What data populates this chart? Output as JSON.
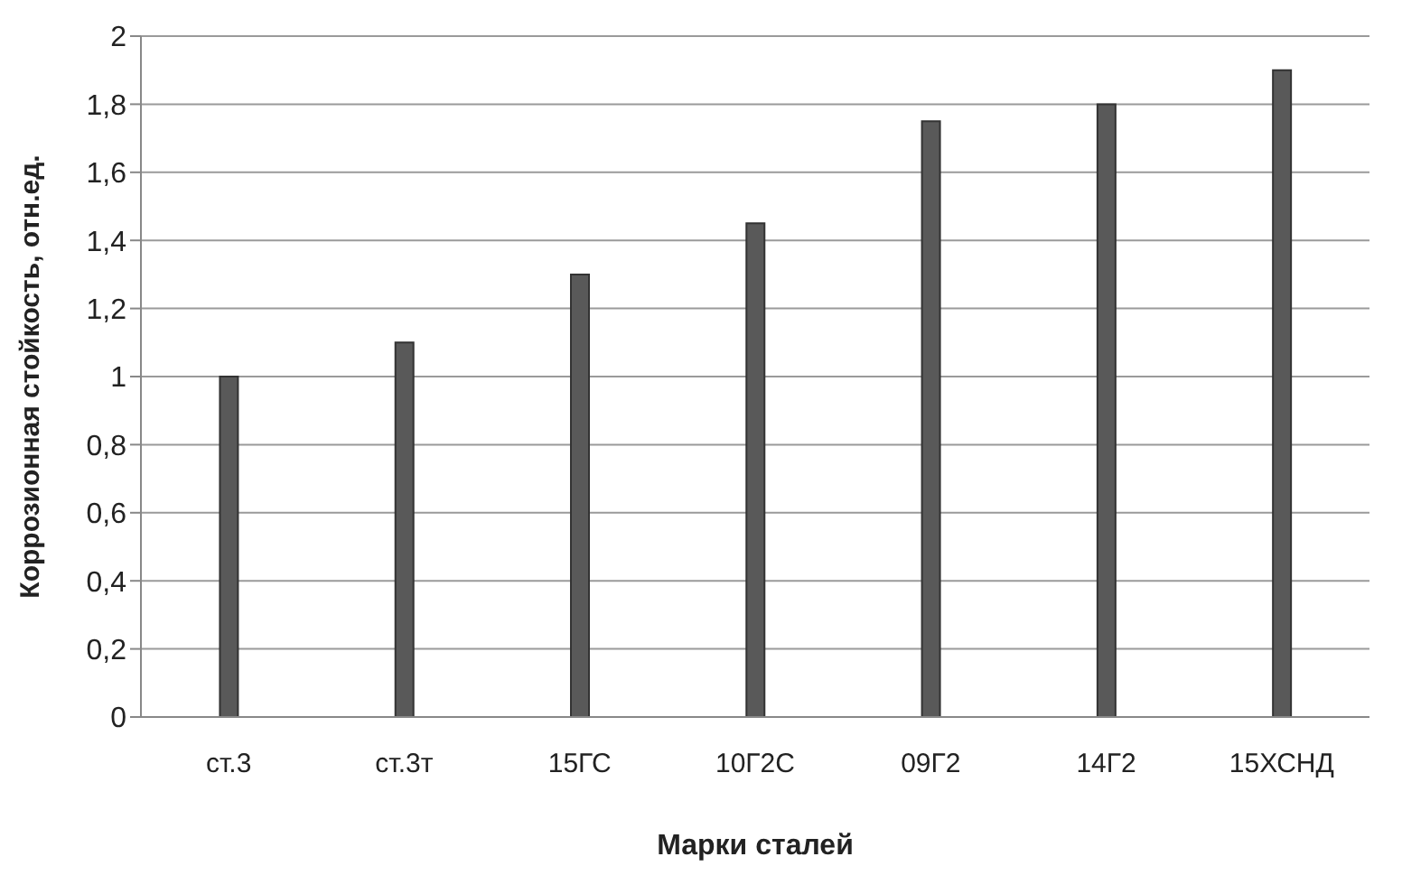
{
  "chart_data": {
    "type": "bar",
    "xlabel": "Марки сталей",
    "ylabel": "Коррозионная стойкость, отн.ед.",
    "categories": [
      "ст.3",
      "ст.3т",
      "15ГС",
      "10Г2С",
      "09Г2",
      "14Г2",
      "15ХСНД"
    ],
    "values": [
      1,
      1.1,
      1.3,
      1.45,
      1.75,
      1.8,
      1.9
    ],
    "color": "#595959",
    "ylim": [
      0,
      2
    ],
    "yticks": [
      0,
      {
        "value": 0.2,
        "label": "0,2"
      },
      {
        "value": 0.4,
        "label": "0,4"
      },
      {
        "value": 0.6,
        "label": "0,6"
      },
      {
        "value": 0.8,
        "label": "0,8"
      },
      1,
      {
        "value": 1.2,
        "label": "1,2"
      },
      {
        "value": 1.4,
        "label": "1,4"
      },
      {
        "value": 1.6,
        "label": "1,6"
      },
      {
        "value": 1.8,
        "label": "1,8"
      },
      2
    ],
    "grid": "y"
  }
}
